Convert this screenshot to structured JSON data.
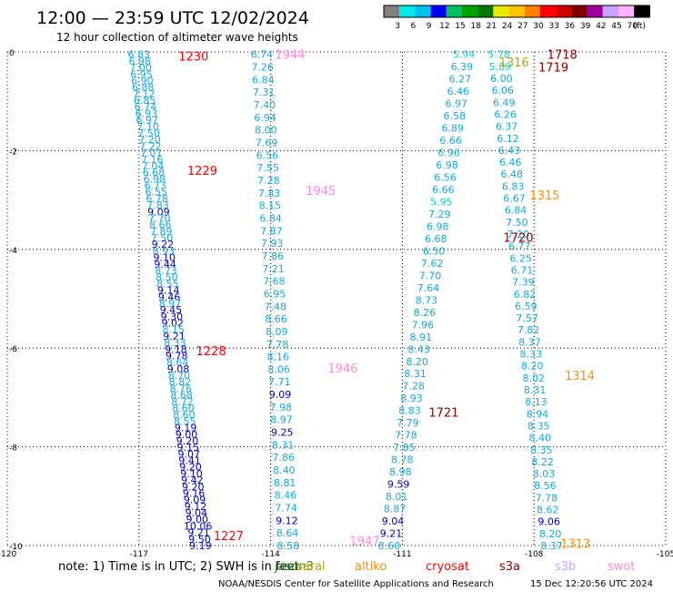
{
  "header": {
    "title": "12:00 — 23:59 UTC 12/02/2024",
    "subtitle": "12 hour collection of altimeter wave heights"
  },
  "legend_scale": {
    "ticks": [
      "3",
      "6",
      "9",
      "12",
      "15",
      "18",
      "21",
      "24",
      "27",
      "30",
      "33",
      "36",
      "39",
      "42",
      "45",
      "70"
    ],
    "unit": "(ft)",
    "colors": [
      "#808080",
      "#00e8e8",
      "#00c0f0",
      "#0000ff",
      "#00c060",
      "#00a000",
      "#007800",
      "#e8e800",
      "#ffc000",
      "#ff8000",
      "#ff0000",
      "#d00000",
      "#800000",
      "#a000a0",
      "#c8a0ff",
      "#ffb0ff",
      "#000000"
    ]
  },
  "footer": {
    "note": "note:  1) Time is in UTC; 2) SWH is in feet",
    "credit": "NOAA/NESDIS Center for Satellite Applications and Research",
    "timestamp": "15 Dec 12:20:56 UTC 2024",
    "satellites": [
      {
        "name": "jason3",
        "color": "#228b22"
      },
      {
        "name": "saral",
        "color": "#c0a000"
      },
      {
        "name": "altiko",
        "color": "#ff8c00"
      },
      {
        "name": "cryosat",
        "color": "#ff0000"
      },
      {
        "name": "s3a",
        "color": "#8b0000"
      },
      {
        "name": "s3b",
        "color": "#c8a0ff"
      },
      {
        "name": "swot",
        "color": "#ff88dd"
      }
    ]
  },
  "chart_data": {
    "type": "scatter",
    "title": "12:00 — 23:59 UTC 12/02/2024",
    "xlim": [
      -120,
      -105
    ],
    "ylim": [
      -10,
      0
    ],
    "x_ticks": [
      "-120",
      "-117",
      "-114",
      "-111",
      "-108",
      "-105"
    ],
    "y_ticks": [
      "0",
      "-2",
      "-4",
      "-6",
      "-8",
      "-10"
    ],
    "grid": true,
    "color_bins": [
      {
        "max": 3,
        "color": "#808080"
      },
      {
        "max": 6,
        "color": "#00d0e0"
      },
      {
        "max": 9,
        "color": "#10a8e0"
      },
      {
        "max": 12,
        "color": "#0000c8"
      },
      {
        "max": 15,
        "color": "#00a050"
      }
    ],
    "time_labels": [
      {
        "text": "1230",
        "x": -116.1,
        "y": -0.08,
        "color": "#ff0000"
      },
      {
        "text": "1229",
        "x": -115.9,
        "y": -2.4,
        "color": "#ff0000"
      },
      {
        "text": "1228",
        "x": -115.7,
        "y": -6.05,
        "color": "#ff0000"
      },
      {
        "text": "1227",
        "x": -115.3,
        "y": -9.8,
        "color": "#ff0000"
      },
      {
        "text": "1944",
        "x": -113.9,
        "y": -0.05,
        "color": "#ff88dd"
      },
      {
        "text": "1945",
        "x": -113.2,
        "y": -2.8,
        "color": "#ff88dd"
      },
      {
        "text": "1946",
        "x": -112.7,
        "y": -6.4,
        "color": "#ff88dd"
      },
      {
        "text": "1947",
        "x": -112.2,
        "y": -9.9,
        "color": "#ff88dd"
      },
      {
        "text": "1718",
        "x": -107.7,
        "y": -0.05,
        "color": "#8b0000"
      },
      {
        "text": "1719",
        "x": -107.9,
        "y": -0.3,
        "color": "#8b0000"
      },
      {
        "text": "1720",
        "x": -108.7,
        "y": -3.75,
        "color": "#8b0000"
      },
      {
        "text": "1721",
        "x": -110.4,
        "y": -7.3,
        "color": "#8b0000"
      },
      {
        "text": "1316",
        "x": -108.8,
        "y": -0.2,
        "color": "#c0a000"
      },
      {
        "text": "1315",
        "x": -108.1,
        "y": -2.9,
        "color": "#ff8c00"
      },
      {
        "text": "1314",
        "x": -107.3,
        "y": -6.55,
        "color": "#ff8c00"
      },
      {
        "text": "1313",
        "x": -107.4,
        "y": -9.95,
        "color": "#ff8c00"
      }
    ],
    "series": [
      {
        "name": "1227-1230",
        "x0": -117.0,
        "x1": -115.6,
        "y0": -0.05,
        "y1": -10.0,
        "values": [
          "6.83",
          "6.98",
          "7.00",
          "6.95",
          "6.90",
          "6.88",
          "7.12",
          "6.85",
          "6.74",
          "6.93",
          "6.97",
          "7.10",
          "7.50",
          "7.20",
          "7.22",
          "7.01",
          "7.16",
          "7.04",
          "6.68",
          "6.98",
          "6.73",
          "6.55",
          "6.78",
          "7.83",
          "9.09",
          "7.70",
          "8.66",
          "7.89",
          "7.50",
          "9.22",
          "8.93",
          "9.10",
          "9.44",
          "8.73",
          "8.50",
          "8.55",
          "9.14",
          "9.46",
          "8.97",
          "9.45",
          "9.30",
          "9.02",
          "8.15",
          "9.21",
          "8.33",
          "9.18",
          "9.78",
          "8.64",
          "9.08",
          "8.70",
          "8.82",
          "8.76",
          "8.68",
          "8.72",
          "8.60",
          "8.60",
          "8.55",
          "9.19",
          "9.00",
          "9.20",
          "9.15",
          "9.07",
          "9.41",
          "9.20",
          "9.10",
          "9.42",
          "9.20",
          "9.16",
          "9.09",
          "9.12",
          "9.04",
          "9.00",
          "10.06",
          "9.21",
          "9.50",
          "9.19"
        ]
      },
      {
        "name": "1944-1947",
        "x0": -114.2,
        "x1": -113.6,
        "y0": -0.05,
        "y1": -10.0,
        "values": [
          "6.74",
          "7.26",
          "6.84",
          "7.31",
          "7.40",
          "6.94",
          "8.00",
          "7.69",
          "6.56",
          "7.55",
          "7.28",
          "7.83",
          "8.15",
          "6.84",
          "7.87",
          "7.93",
          "7.86",
          "7.21",
          "7.68",
          "6.95",
          "7.48",
          "8.66",
          "8.09",
          "7.78",
          "8.16",
          "8.06",
          "7.71",
          "9.09",
          "7.98",
          "8.97",
          "9.25",
          "8.31",
          "7.86",
          "8.40",
          "8.81",
          "8.46",
          "7.74",
          "9.12",
          "8.64",
          "8.58"
        ]
      },
      {
        "name": "1718-1721",
        "x0": -109.6,
        "x1": -111.3,
        "y0": -0.05,
        "y1": -10.0,
        "values": [
          "5.94",
          "6.39",
          "6.27",
          "6.46",
          "6.97",
          "6.58",
          "6.89",
          "6.66",
          "6.96",
          "6.98",
          "6.56",
          "6.66",
          "5.95",
          "7.29",
          "6.98",
          "6.68",
          "6.50",
          "7.62",
          "7.70",
          "7.64",
          "8.73",
          "8.26",
          "7.96",
          "8.91",
          "8.43",
          "8.20",
          "8.31",
          "7.28",
          "8.93",
          "8.83",
          "7.79",
          "7.78",
          "7.85",
          "8.78",
          "8.98",
          "9.59",
          "8.01",
          "8.87",
          "9.04",
          "9.21",
          "8.60"
        ]
      },
      {
        "name": "1313-1316",
        "x0": -108.8,
        "x1": -107.6,
        "y0": -0.05,
        "y1": -10.0,
        "values": [
          "5.78",
          "5.89",
          "6.00",
          "6.06",
          "6.49",
          "6.26",
          "6.37",
          "6.12",
          "6.43",
          "6.46",
          "6.48",
          "6.83",
          "6.67",
          "6.84",
          "7.50",
          "7.20",
          "6.77",
          "6.25",
          "6.71",
          "7.39",
          "6.82",
          "6.59",
          "7.57",
          "7.82",
          "8.37",
          "8.33",
          "8.20",
          "8.02",
          "8.31",
          "8.13",
          "8.94",
          "8.35",
          "8.40",
          "8.35",
          "8.22",
          "8.03",
          "8.56",
          "7.78",
          "8.62",
          "9.06",
          "8.20",
          "8.37"
        ]
      }
    ]
  }
}
